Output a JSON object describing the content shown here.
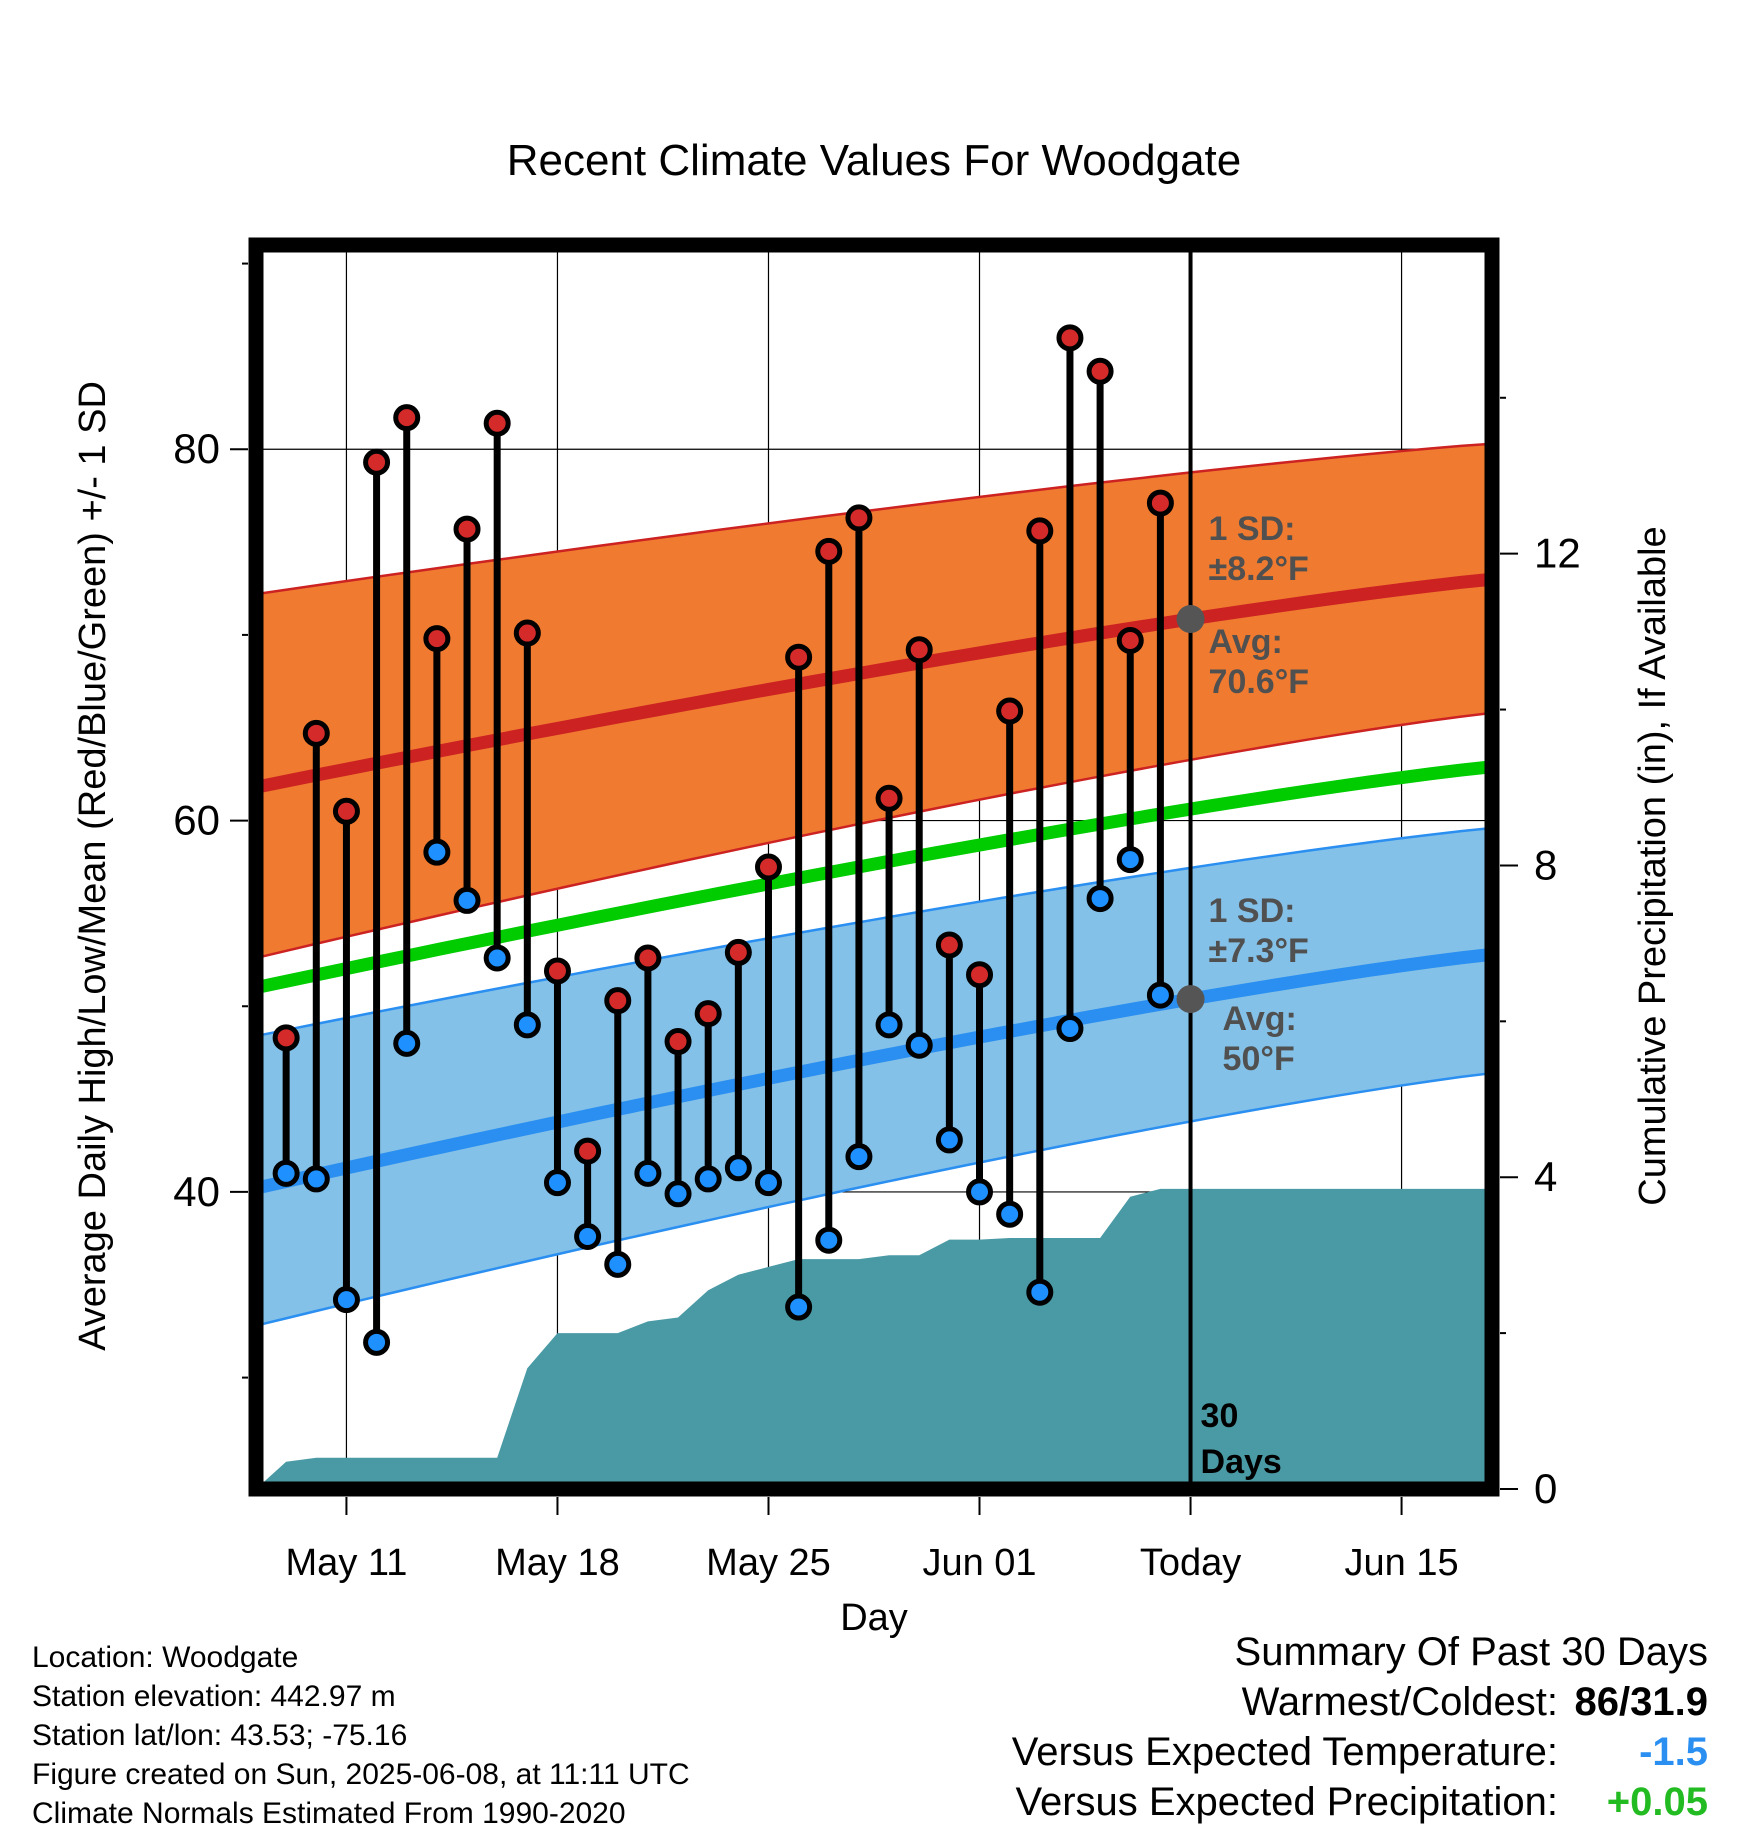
{
  "chart_data": {
    "type": "line",
    "title": "Recent Climate Values For Woodgate",
    "xlabel": "Day",
    "ylabel": "Average Daily High/Low/Mean (Red/Blue/Green) +/- 1 SD",
    "y2label": "Cumulative Precipitation (in), If Available",
    "x_range": [
      "2025-05-08",
      "2025-06-18"
    ],
    "ylim": [
      24,
      91
    ],
    "y_ticks": [
      40,
      60,
      80
    ],
    "y2lim": [
      0,
      15.96
    ],
    "y2_ticks": [
      0,
      4,
      8,
      12
    ],
    "grid": true,
    "x_ticks": [
      {
        "date": "2025-05-11",
        "label": "May 11"
      },
      {
        "date": "2025-05-18",
        "label": "May 18"
      },
      {
        "date": "2025-05-25",
        "label": "May 25"
      },
      {
        "date": "2025-06-01",
        "label": "Jun 01"
      },
      {
        "date": "2025-06-08",
        "label": "Today"
      },
      {
        "date": "2025-06-15",
        "label": "Jun 15"
      }
    ],
    "today": "2025-06-08",
    "today_label": [
      "30",
      "Days"
    ],
    "normals": {
      "high": {
        "start": 61.8,
        "end": 73.0,
        "sd_upper_start": 72.2,
        "sd_upper_end": 80.3,
        "sd_lower_start": 52.6,
        "sd_lower_end": 65.8,
        "color": "#cc2222",
        "band_color": "#f07b30"
      },
      "low": {
        "start": 40.2,
        "end": 52.8,
        "sd_upper_start": 48.4,
        "sd_upper_end": 59.6,
        "sd_lower_start": 32.8,
        "sd_lower_end": 46.4,
        "color": "#2a8ff0",
        "band_color": "#84c1e8"
      },
      "mean": {
        "start": 51.0,
        "end": 62.9,
        "color": "#00cc00"
      }
    },
    "annotations": {
      "high_sd": [
        "1 SD:",
        "±8.2°F"
      ],
      "high_avg": [
        "Avg:",
        "70.6°F"
      ],
      "low_sd": [
        "1 SD:",
        "±7.3°F"
      ],
      "low_avg": [
        "Avg:",
        "50°F"
      ]
    },
    "daily": [
      {
        "date": "2025-05-09",
        "high": 48.3,
        "low": 41.0
      },
      {
        "date": "2025-05-10",
        "high": 64.7,
        "low": 40.7
      },
      {
        "date": "2025-05-11",
        "high": 60.5,
        "low": 34.2
      },
      {
        "date": "2025-05-12",
        "high": 79.3,
        "low": 31.9
      },
      {
        "date": "2025-05-13",
        "high": 81.7,
        "low": 48.0
      },
      {
        "date": "2025-05-14",
        "high": 69.8,
        "low": 58.3
      },
      {
        "date": "2025-05-15",
        "high": 75.7,
        "low": 55.7
      },
      {
        "date": "2025-05-16",
        "high": 81.4,
        "low": 52.6
      },
      {
        "date": "2025-05-17",
        "high": 70.1,
        "low": 49.0
      },
      {
        "date": "2025-05-18",
        "high": 51.9,
        "low": 40.5
      },
      {
        "date": "2025-05-19",
        "high": 42.2,
        "low": 37.6
      },
      {
        "date": "2025-05-20",
        "high": 50.3,
        "low": 36.1
      },
      {
        "date": "2025-05-21",
        "high": 52.6,
        "low": 41.0
      },
      {
        "date": "2025-05-22",
        "high": 48.1,
        "low": 39.9
      },
      {
        "date": "2025-05-23",
        "high": 49.6,
        "low": 40.7
      },
      {
        "date": "2025-05-24",
        "high": 52.9,
        "low": 41.3
      },
      {
        "date": "2025-05-25",
        "high": 57.5,
        "low": 40.5
      },
      {
        "date": "2025-05-26",
        "high": 68.8,
        "low": 33.8
      },
      {
        "date": "2025-05-27",
        "high": 74.5,
        "low": 37.4
      },
      {
        "date": "2025-05-28",
        "high": 76.3,
        "low": 41.9
      },
      {
        "date": "2025-05-29",
        "high": 61.2,
        "low": 49.0
      },
      {
        "date": "2025-05-30",
        "high": 69.2,
        "low": 47.9
      },
      {
        "date": "2025-05-31",
        "high": 53.3,
        "low": 42.8
      },
      {
        "date": "2025-06-01",
        "high": 51.7,
        "low": 40.0
      },
      {
        "date": "2025-06-02",
        "high": 65.9,
        "low": 38.8
      },
      {
        "date": "2025-06-03",
        "high": 75.6,
        "low": 34.6
      },
      {
        "date": "2025-06-04",
        "high": 86.0,
        "low": 48.8
      },
      {
        "date": "2025-06-05",
        "high": 84.2,
        "low": 55.8
      },
      {
        "date": "2025-06-06",
        "high": 69.7,
        "low": 57.9
      },
      {
        "date": "2025-06-07",
        "high": 77.1,
        "low": 50.6
      }
    ],
    "precip_cumulative": [
      {
        "date": "2025-05-08",
        "value": 0.0
      },
      {
        "date": "2025-05-09",
        "value": 0.35
      },
      {
        "date": "2025-05-10",
        "value": 0.4
      },
      {
        "date": "2025-05-11",
        "value": 0.4
      },
      {
        "date": "2025-05-12",
        "value": 0.4
      },
      {
        "date": "2025-05-13",
        "value": 0.4
      },
      {
        "date": "2025-05-14",
        "value": 0.4
      },
      {
        "date": "2025-05-15",
        "value": 0.4
      },
      {
        "date": "2025-05-16",
        "value": 0.4
      },
      {
        "date": "2025-05-17",
        "value": 1.55
      },
      {
        "date": "2025-05-18",
        "value": 2.0
      },
      {
        "date": "2025-05-19",
        "value": 2.0
      },
      {
        "date": "2025-05-20",
        "value": 2.0
      },
      {
        "date": "2025-05-21",
        "value": 2.15
      },
      {
        "date": "2025-05-22",
        "value": 2.2
      },
      {
        "date": "2025-05-23",
        "value": 2.55
      },
      {
        "date": "2025-05-24",
        "value": 2.75
      },
      {
        "date": "2025-05-25",
        "value": 2.85
      },
      {
        "date": "2025-05-26",
        "value": 2.95
      },
      {
        "date": "2025-05-27",
        "value": 2.95
      },
      {
        "date": "2025-05-28",
        "value": 2.95
      },
      {
        "date": "2025-05-29",
        "value": 3.0
      },
      {
        "date": "2025-05-30",
        "value": 3.0
      },
      {
        "date": "2025-05-31",
        "value": 3.2
      },
      {
        "date": "2025-06-01",
        "value": 3.2
      },
      {
        "date": "2025-06-02",
        "value": 3.22
      },
      {
        "date": "2025-06-03",
        "value": 3.22
      },
      {
        "date": "2025-06-04",
        "value": 3.22
      },
      {
        "date": "2025-06-05",
        "value": 3.22
      },
      {
        "date": "2025-06-06",
        "value": 3.75
      },
      {
        "date": "2025-06-07",
        "value": 3.85
      },
      {
        "date": "2025-06-08",
        "value": 3.85
      },
      {
        "date": "2025-06-18",
        "value": 3.85
      }
    ],
    "precip_color": "#4a9aa5"
  },
  "station": {
    "location": "Location: Woodgate",
    "elevation": "Station elevation: 442.97 m",
    "latlon": "Station lat/lon: 43.53; -75.16",
    "created": "Figure created on Sun, 2025-06-08, at 11:11 UTC",
    "normals": "Climate Normals Estimated From 1990-2020"
  },
  "summary": {
    "title": "Summary Of Past 30 Days",
    "warmest_coldest_label": "Warmest/Coldest:",
    "warmest_coldest_value": "86/31.9",
    "temp_label": "Versus Expected Temperature:",
    "temp_value": "-1.5",
    "temp_color": "#2a8ff0",
    "precip_label": "Versus Expected Precipitation:",
    "precip_value": "+0.05",
    "precip_color": "#22bb22"
  }
}
